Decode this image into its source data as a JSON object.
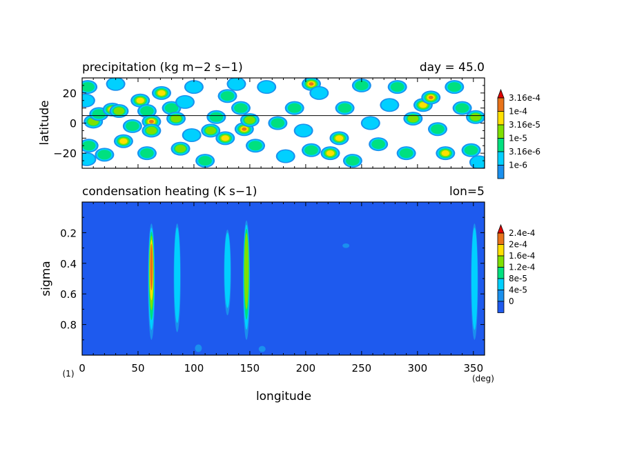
{
  "chart_data": [
    {
      "type": "heatmap",
      "title": "precipitation (kg m−2 s−1)",
      "title_right": "day = 45.0",
      "ylabel": "latitude",
      "ylim": [
        -30,
        30
      ],
      "xlim": [
        0,
        360
      ],
      "yticks": [
        -20,
        0,
        20
      ],
      "reference_line_lat": 5,
      "colorbar": {
        "levels": [
          "3.16e-4",
          "1e-4",
          "3.16e-5",
          "1e-5",
          "3.16e-6",
          "1e-6"
        ],
        "colors": [
          "#e8731a",
          "#ffe000",
          "#7fe000",
          "#00e07f",
          "#00d0ff",
          "#1a90ee"
        ],
        "over_color": "#e00000"
      },
      "cells": [
        {
          "lon": 5,
          "lat": 24,
          "level": 3
        },
        {
          "lon": 3,
          "lat": 15,
          "level": 2
        },
        {
          "lon": 10,
          "lat": 1,
          "level": 4
        },
        {
          "lon": 6,
          "lat": -15,
          "level": 3
        },
        {
          "lon": 4,
          "lat": -24,
          "level": 2
        },
        {
          "lon": 15,
          "lat": 6,
          "level": 3
        },
        {
          "lon": 20,
          "lat": -21,
          "level": 3
        },
        {
          "lon": 27,
          "lat": 9,
          "level": 5
        },
        {
          "lon": 33,
          "lat": 8,
          "level": 4
        },
        {
          "lon": 37,
          "lat": -12,
          "level": 5
        },
        {
          "lon": 30,
          "lat": 26,
          "level": 2
        },
        {
          "lon": 45,
          "lat": -2,
          "level": 3
        },
        {
          "lon": 52,
          "lat": 15,
          "level": 5
        },
        {
          "lon": 58,
          "lat": 8,
          "level": 3
        },
        {
          "lon": 62,
          "lat": 1,
          "level": 6
        },
        {
          "lon": 62,
          "lat": -5,
          "level": 4
        },
        {
          "lon": 58,
          "lat": -20,
          "level": 3
        },
        {
          "lon": 71,
          "lat": 20,
          "level": 5
        },
        {
          "lon": 80,
          "lat": 10,
          "level": 3
        },
        {
          "lon": 88,
          "lat": -17,
          "level": 4
        },
        {
          "lon": 84,
          "lat": 3,
          "level": 4
        },
        {
          "lon": 92,
          "lat": 14,
          "level": 2
        },
        {
          "lon": 98,
          "lat": -8,
          "level": 2
        },
        {
          "lon": 100,
          "lat": 24,
          "level": 2
        },
        {
          "lon": 110,
          "lat": -25,
          "level": 3
        },
        {
          "lon": 115,
          "lat": -5,
          "level": 4
        },
        {
          "lon": 120,
          "lat": 4,
          "level": 3
        },
        {
          "lon": 128,
          "lat": -10,
          "level": 5
        },
        {
          "lon": 130,
          "lat": 18,
          "level": 3
        },
        {
          "lon": 138,
          "lat": 26,
          "level": 2
        },
        {
          "lon": 142,
          "lat": 10,
          "level": 3
        },
        {
          "lon": 145,
          "lat": -4,
          "level": 6
        },
        {
          "lon": 150,
          "lat": 2,
          "level": 4
        },
        {
          "lon": 155,
          "lat": -15,
          "level": 3
        },
        {
          "lon": 165,
          "lat": 24,
          "level": 2
        },
        {
          "lon": 175,
          "lat": 0,
          "level": 3
        },
        {
          "lon": 182,
          "lat": -22,
          "level": 2
        },
        {
          "lon": 190,
          "lat": 10,
          "level": 3
        },
        {
          "lon": 198,
          "lat": -5,
          "level": 2
        },
        {
          "lon": 205,
          "lat": 26,
          "level": 6
        },
        {
          "lon": 205,
          "lat": -18,
          "level": 3
        },
        {
          "lon": 212,
          "lat": 20,
          "level": 2
        },
        {
          "lon": 222,
          "lat": -20,
          "level": 5
        },
        {
          "lon": 230,
          "lat": -10,
          "level": 5
        },
        {
          "lon": 235,
          "lat": 10,
          "level": 3
        },
        {
          "lon": 242,
          "lat": -25,
          "level": 3
        },
        {
          "lon": 250,
          "lat": 25,
          "level": 3
        },
        {
          "lon": 258,
          "lat": 0,
          "level": 2
        },
        {
          "lon": 265,
          "lat": -14,
          "level": 3
        },
        {
          "lon": 275,
          "lat": 12,
          "level": 2
        },
        {
          "lon": 282,
          "lat": 24,
          "level": 3
        },
        {
          "lon": 290,
          "lat": -20,
          "level": 3
        },
        {
          "lon": 296,
          "lat": 3,
          "level": 4
        },
        {
          "lon": 305,
          "lat": 12,
          "level": 5
        },
        {
          "lon": 312,
          "lat": 17,
          "level": 6
        },
        {
          "lon": 318,
          "lat": -4,
          "level": 3
        },
        {
          "lon": 325,
          "lat": -20,
          "level": 5
        },
        {
          "lon": 333,
          "lat": 24,
          "level": 3
        },
        {
          "lon": 340,
          "lat": 10,
          "level": 3
        },
        {
          "lon": 348,
          "lat": -18,
          "level": 3
        },
        {
          "lon": 352,
          "lat": 4,
          "level": 4
        },
        {
          "lon": 355,
          "lat": -26,
          "level": 2
        }
      ]
    },
    {
      "type": "heatmap",
      "title": "condensation heating (K s−1)",
      "title_right": "lon=5",
      "ylabel": "sigma",
      "xlabel": "longitude",
      "xunit": "(deg)",
      "corner_label": "(1)",
      "xlim": [
        0,
        360
      ],
      "ylim": [
        1.0,
        0.0
      ],
      "xticks": [
        0,
        50,
        100,
        150,
        200,
        250,
        300,
        350
      ],
      "yticks": [
        "0.2",
        "0.4",
        "0.6",
        "0.8"
      ],
      "ytick_values": [
        0.2,
        0.4,
        0.6,
        0.8
      ],
      "background_color": "#1e5aee",
      "colorbar": {
        "levels": [
          "2.4e-4",
          "2e-4",
          "1.6e-4",
          "1.2e-4",
          "8e-5",
          "4e-5",
          "0"
        ],
        "colors": [
          "#e8731a",
          "#ffe000",
          "#7fe000",
          "#00e07f",
          "#00d0ff",
          "#1a90ee",
          "#1e5aee"
        ],
        "over_color": "#e00000"
      },
      "columns": [
        {
          "lon": 62,
          "sigma_top": 0.14,
          "sigma_bottom": 0.9,
          "peak_level": 6
        },
        {
          "lon": 85,
          "sigma_top": 0.14,
          "sigma_bottom": 0.85,
          "peak_level": 2
        },
        {
          "lon": 130,
          "sigma_top": 0.18,
          "sigma_bottom": 0.74,
          "peak_level": 2
        },
        {
          "lon": 147,
          "sigma_top": 0.12,
          "sigma_bottom": 0.9,
          "peak_level": 4
        },
        {
          "lon": 351,
          "sigma_top": 0.14,
          "sigma_bottom": 0.9,
          "peak_level": 2
        },
        {
          "lon": 104,
          "sigma_top": 0.93,
          "sigma_bottom": 0.98,
          "peak_level": 1
        },
        {
          "lon": 161,
          "sigma_top": 0.94,
          "sigma_bottom": 0.98,
          "peak_level": 1
        },
        {
          "lon": 236,
          "sigma_top": 0.27,
          "sigma_bottom": 0.3,
          "peak_level": 1
        }
      ]
    }
  ]
}
